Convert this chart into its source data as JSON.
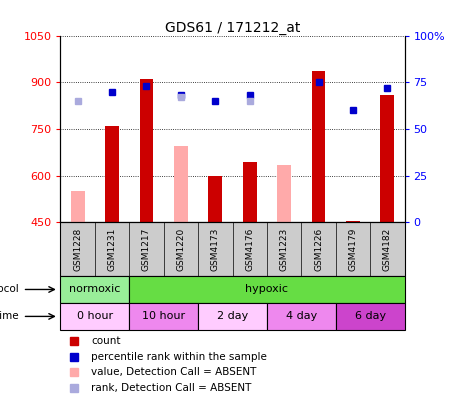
{
  "title": "GDS61 / 171212_at",
  "samples": [
    "GSM1228",
    "GSM1231",
    "GSM1217",
    "GSM1220",
    "GSM4173",
    "GSM4176",
    "GSM1223",
    "GSM1226",
    "GSM4179",
    "GSM4182"
  ],
  "ylim_left": [
    450,
    1050
  ],
  "ylim_right": [
    0,
    100
  ],
  "yticks_left": [
    450,
    600,
    750,
    900,
    1050
  ],
  "yticks_right": [
    0,
    25,
    50,
    75,
    100
  ],
  "ytick_labels_right": [
    "0",
    "25",
    "50",
    "75",
    "100%"
  ],
  "red_bars": [
    null,
    760,
    910,
    null,
    600,
    645,
    null,
    935,
    455,
    860
  ],
  "pink_bars": [
    550,
    null,
    null,
    695,
    null,
    null,
    635,
    null,
    null,
    null
  ],
  "blue_pct": [
    null,
    70,
    73,
    68,
    65,
    68,
    null,
    75,
    60,
    72
  ],
  "lav_pct": [
    65,
    null,
    null,
    67,
    null,
    65,
    null,
    null,
    null,
    null
  ],
  "bar_width": 0.4,
  "red_bar_color": "#cc0000",
  "pink_bar_color": "#ffaaaa",
  "blue_square_color": "#0000cc",
  "lavender_square_color": "#aaaadd",
  "bg_color": "#ffffff",
  "plot_bg_color": "#ffffff",
  "sample_label_bg": "#cccccc",
  "protocol_normoxic_color": "#99ee99",
  "protocol_hypoxic_color": "#66dd44",
  "time_colors": [
    "#ffccff",
    "#ee88ee",
    "#ffccff",
    "#ee88ee",
    "#cc44cc"
  ],
  "time_labels": [
    "0 hour",
    "10 hour",
    "2 day",
    "4 day",
    "6 day"
  ],
  "legend_items": [
    {
      "label": "count",
      "color": "#cc0000"
    },
    {
      "label": "percentile rank within the sample",
      "color": "#0000cc"
    },
    {
      "label": "value, Detection Call = ABSENT",
      "color": "#ffaaaa"
    },
    {
      "label": "rank, Detection Call = ABSENT",
      "color": "#aaaadd"
    }
  ]
}
